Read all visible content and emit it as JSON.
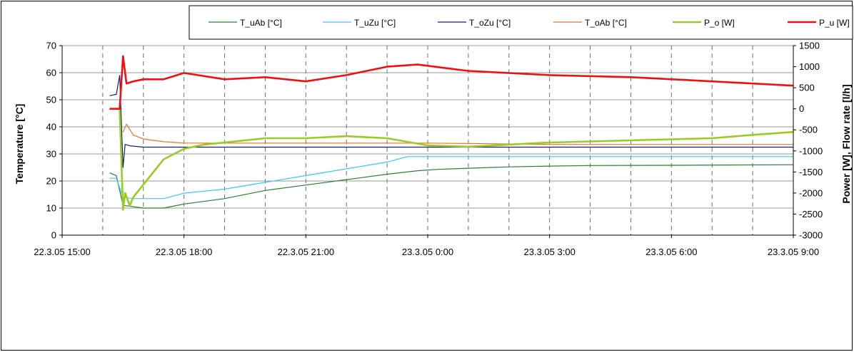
{
  "chart_data": {
    "type": "line",
    "title": "",
    "legend": {
      "placement": "top"
    },
    "grid": {
      "horizontal": true,
      "vertical_dashed": true
    },
    "x_axis": {
      "type": "datetime",
      "range": [
        "22.3.05 15:00",
        "23.3.05 9:00"
      ],
      "ticks": [
        "22.3.05 15:00",
        "22.3.05 18:00",
        "22.3.05 21:00",
        "23.3.05 0:00",
        "23.3.05 3:00",
        "23.3.05 6:00",
        "23.3.05 9:00"
      ]
    },
    "y_axis_left": {
      "label": "Temperature [°C]",
      "range": [
        0,
        70
      ],
      "ticks": [
        "0",
        "10",
        "20",
        "30",
        "40",
        "50",
        "60",
        "70"
      ]
    },
    "y_axis_right": {
      "label": "Power [W],  Flow rate [l/h]",
      "range": [
        -3000,
        1500
      ],
      "ticks": [
        "-3000",
        "-2500",
        "-2000",
        "-1500",
        "-1000",
        "-500",
        "0",
        "500",
        "1000",
        "1500"
      ]
    },
    "series": [
      {
        "name": "T_uAb [°C]",
        "axis": "left",
        "color": "#2e7d32",
        "width": 1.2,
        "x": [
          "22.3.05 16:10",
          "22.3.05 16:20",
          "22.3.05 16:30",
          "22.3.05 16:45",
          "22.3.05 17:00",
          "22.3.05 17:30",
          "22.3.05 18:00",
          "22.3.05 19:00",
          "22.3.05 20:00",
          "22.3.05 21:00",
          "22.3.05 22:00",
          "22.3.05 23:00",
          "22.3.05 23:45",
          "23.3.05 0:15",
          "23.3.05 1:00",
          "23.3.05 2:00",
          "23.3.05 3:00",
          "23.3.05 4:00",
          "23.3.05 6:00",
          "23.3.05 9:00"
        ],
        "y": [
          23,
          22,
          11,
          10.5,
          10,
          10,
          11.5,
          13.5,
          16.5,
          18.5,
          20.5,
          22.5,
          23.8,
          24.3,
          24.7,
          25.2,
          25.5,
          25.7,
          25.8,
          26
        ]
      },
      {
        "name": "T_uZu [°C]",
        "axis": "left",
        "color": "#33ccee",
        "width": 1.2,
        "x": [
          "22.3.05 16:10",
          "22.3.05 16:20",
          "22.3.05 16:30",
          "22.3.05 16:45",
          "22.3.05 17:30",
          "22.3.05 18:00",
          "22.3.05 19:00",
          "22.3.05 20:00",
          "22.3.05 21:00",
          "22.3.05 22:00",
          "22.3.05 23:00",
          "22.3.05 23:30",
          "23.3.05 0:30",
          "23.3.05 3:00",
          "23.3.05 6:00",
          "23.3.05 9:00"
        ],
        "y": [
          21,
          21,
          14,
          13.5,
          13.5,
          15.5,
          17,
          19.5,
          22,
          24.5,
          27,
          29,
          29,
          29,
          29,
          29
        ]
      },
      {
        "name": "T_oZu [°C]",
        "axis": "left",
        "color": "#1a1a7a",
        "width": 1.2,
        "x": [
          "22.3.05 16:10",
          "22.3.05 16:20",
          "22.3.05 16:25",
          "22.3.05 16:30",
          "22.3.05 16:33",
          "22.3.05 16:40",
          "22.3.05 17:00",
          "22.3.05 18:00",
          "22.3.05 21:00",
          "23.3.05 0:00",
          "23.3.05 3:00",
          "23.3.05 6:00",
          "23.3.05 9:00"
        ],
        "y": [
          51.5,
          52,
          59,
          25,
          33.5,
          33,
          32.5,
          32.5,
          32.5,
          32.5,
          32.5,
          32.5,
          32.5
        ]
      },
      {
        "name": "T_oAb [°C]",
        "axis": "left",
        "color": "#f07020",
        "width": 1.2,
        "x": [
          "22.3.05 16:30",
          "22.3.05 16:35",
          "22.3.05 16:45",
          "22.3.05 17:00",
          "22.3.05 17:30",
          "22.3.05 18:00",
          "22.3.05 21:00",
          "23.3.05 0:00",
          "23.3.05 3:00",
          "23.3.05 6:00",
          "23.3.05 9:00"
        ],
        "y": [
          38,
          41,
          37,
          35.5,
          34.5,
          34,
          34,
          34,
          33.5,
          33.5,
          33.5
        ]
      },
      {
        "name": "P_o [W]",
        "axis": "right",
        "color": "#99cc22",
        "width": 2.6,
        "x": [
          "22.3.05 16:25",
          "22.3.05 16:30",
          "22.3.05 16:33",
          "22.3.05 16:40",
          "22.3.05 16:45",
          "22.3.05 17:00",
          "22.3.05 17:15",
          "22.3.05 17:30",
          "22.3.05 18:00",
          "22.3.05 18:30",
          "22.3.05 19:00",
          "22.3.05 20:00",
          "22.3.05 21:00",
          "22.3.05 22:00",
          "22.3.05 23:00",
          "23.3.05 0:00",
          "23.3.05 1:00",
          "23.3.05 2:00",
          "23.3.05 3:00",
          "23.3.05 5:00",
          "23.3.05 7:00",
          "23.3.05 8:00",
          "23.3.05 9:00"
        ],
        "y": [
          0,
          -2400,
          -2000,
          -2300,
          -2100,
          -1800,
          -1500,
          -1200,
          -950,
          -850,
          -800,
          -700,
          -700,
          -650,
          -700,
          -870,
          -900,
          -850,
          -800,
          -750,
          -700,
          -620,
          -550
        ]
      },
      {
        "name": "P_u [W]",
        "axis": "right",
        "color": "#ee1111",
        "width": 2.6,
        "x": [
          "22.3.05 16:10",
          "22.3.05 16:25",
          "22.3.05 16:30",
          "22.3.05 16:35",
          "22.3.05 16:45",
          "22.3.05 17:00",
          "22.3.05 17:30",
          "22.3.05 18:00",
          "22.3.05 19:00",
          "22.3.05 20:00",
          "22.3.05 21:00",
          "22.3.05 22:00",
          "22.3.05 23:00",
          "22.3.05 23:45",
          "23.3.05 1:00",
          "23.3.05 3:00",
          "23.3.05 5:00",
          "23.3.05 7:00",
          "23.3.05 9:00"
        ],
        "y": [
          0,
          0,
          1250,
          600,
          650,
          700,
          700,
          850,
          700,
          750,
          650,
          800,
          1000,
          1050,
          900,
          800,
          750,
          650,
          550
        ]
      }
    ]
  }
}
